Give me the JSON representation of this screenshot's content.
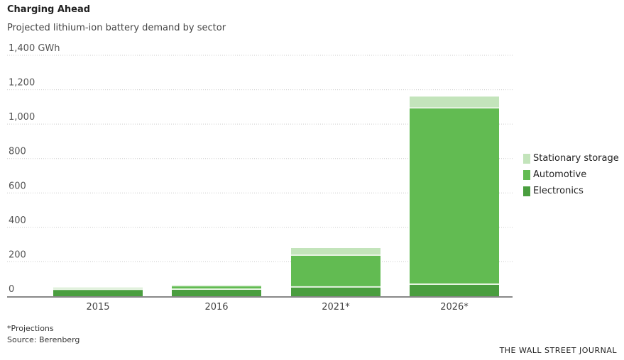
{
  "chart_data": {
    "type": "bar",
    "stacked": true,
    "title": "Charging Ahead",
    "subtitle": "Projected lithium-ion battery demand by sector",
    "categories": [
      "2015",
      "2016",
      "2021*",
      "2026*"
    ],
    "series": [
      {
        "name": "Electronics",
        "color": "#4a9e3f",
        "values": [
          40,
          41,
          54,
          70
        ]
      },
      {
        "name": "Automotive",
        "color": "#62bb52",
        "values": [
          8,
          20,
          185,
          1025
        ]
      },
      {
        "name": "Stationary storage",
        "color": "#c3e4bb",
        "values": [
          2,
          1,
          41,
          65
        ]
      }
    ],
    "ylim": [
      0,
      1400
    ],
    "yticks": [
      0,
      200,
      400,
      600,
      800,
      1000,
      1200,
      1400
    ],
    "ytick_labels": [
      "0",
      "200",
      "400",
      "600",
      "800",
      "1,000",
      "1,200",
      "1,400 GWh"
    ],
    "legend_placement": "right",
    "legend_order": [
      "Stationary storage",
      "Automotive",
      "Electronics"
    ],
    "grid": true
  },
  "notes": {
    "projections": "*Projections",
    "source": "Source: Berenberg"
  },
  "credit": "THE WALL STREET JOURNAL"
}
